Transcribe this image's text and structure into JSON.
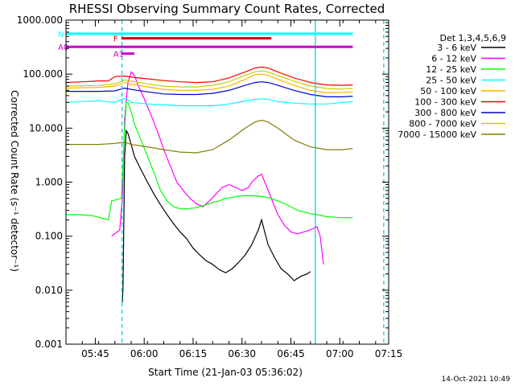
{
  "chart_data": {
    "type": "line",
    "title": "RHESSI Observing Summary Count Rates, Corrected",
    "xlabel": "Start Time (21-Jan-03 05:36:02)",
    "ylabel": "Corrected Count Rate (s⁻¹ detector⁻¹)",
    "yscale": "log",
    "ylim": [
      0.001,
      1000
    ],
    "xlim_minutes": [
      0,
      99
    ],
    "x_ticks": [
      {
        "min": 9,
        "label": "05:45"
      },
      {
        "min": 24,
        "label": "06:00"
      },
      {
        "min": 39,
        "label": "06:15"
      },
      {
        "min": 54,
        "label": "06:30"
      },
      {
        "min": 69,
        "label": "06:45"
      },
      {
        "min": 84,
        "label": "07:00"
      },
      {
        "min": 99,
        "label": "07:15"
      }
    ],
    "y_tick_labels": [
      "0.001",
      "0.010",
      "0.100",
      "1.000",
      "10.000",
      "100.000",
      "1000.000"
    ],
    "legend_title": "Det 1,3,4,5,6,9",
    "timestamp": "14-Oct-2021 10:49",
    "series": [
      {
        "name": "3 - 6 keV",
        "color": "#000000",
        "points": [
          [
            17.3,
            0.006
          ],
          [
            17.5,
            0.012
          ],
          [
            18.0,
            3
          ],
          [
            18.5,
            9
          ],
          [
            19.0,
            8
          ],
          [
            20,
            5
          ],
          [
            21,
            3
          ],
          [
            23,
            1.7
          ],
          [
            25,
            1.0
          ],
          [
            27,
            0.6
          ],
          [
            29,
            0.38
          ],
          [
            31,
            0.25
          ],
          [
            33,
            0.17
          ],
          [
            35,
            0.12
          ],
          [
            37,
            0.09
          ],
          [
            39,
            0.06
          ],
          [
            41,
            0.045
          ],
          [
            43,
            0.035
          ],
          [
            45,
            0.03
          ],
          [
            47,
            0.024
          ],
          [
            49,
            0.021
          ],
          [
            51,
            0.025
          ],
          [
            53,
            0.033
          ],
          [
            55,
            0.045
          ],
          [
            57,
            0.07
          ],
          [
            59,
            0.13
          ],
          [
            60,
            0.2
          ],
          [
            62,
            0.07
          ],
          [
            64,
            0.04
          ],
          [
            66,
            0.025
          ],
          [
            68,
            0.02
          ],
          [
            70,
            0.015
          ],
          [
            72,
            0.018
          ],
          [
            74,
            0.02
          ],
          [
            75,
            0.022
          ]
        ]
      },
      {
        "name": "6 - 12 keV",
        "color": "#ff00ff",
        "points": [
          [
            14,
            0.1
          ],
          [
            16.5,
            0.13
          ],
          [
            17.3,
            0.5
          ],
          [
            18,
            15
          ],
          [
            19,
            70
          ],
          [
            20,
            110
          ],
          [
            21,
            95
          ],
          [
            22,
            65
          ],
          [
            24,
            35
          ],
          [
            26,
            18
          ],
          [
            28,
            9
          ],
          [
            30,
            4
          ],
          [
            32,
            2
          ],
          [
            34,
            1.0
          ],
          [
            36,
            0.7
          ],
          [
            38,
            0.5
          ],
          [
            40,
            0.4
          ],
          [
            42,
            0.35
          ],
          [
            44,
            0.45
          ],
          [
            46,
            0.6
          ],
          [
            48,
            0.8
          ],
          [
            50,
            0.9
          ],
          [
            52,
            0.8
          ],
          [
            54,
            0.7
          ],
          [
            56,
            0.8
          ],
          [
            57,
            1.0
          ],
          [
            59,
            1.3
          ],
          [
            60,
            1.4
          ],
          [
            61,
            1.0
          ],
          [
            63,
            0.5
          ],
          [
            65,
            0.25
          ],
          [
            67,
            0.16
          ],
          [
            69,
            0.12
          ],
          [
            71,
            0.11
          ],
          [
            73,
            0.12
          ],
          [
            75,
            0.13
          ],
          [
            77,
            0.15
          ],
          [
            78,
            0.1
          ],
          [
            79,
            0.03
          ]
        ]
      },
      {
        "name": "12 - 25 keV",
        "color": "#00ff00",
        "points": [
          [
            0,
            0.25
          ],
          [
            4,
            0.25
          ],
          [
            8,
            0.24
          ],
          [
            13,
            0.2
          ],
          [
            14,
            0.45
          ],
          [
            17,
            0.5
          ],
          [
            17.5,
            2
          ],
          [
            18,
            10
          ],
          [
            18.5,
            30
          ],
          [
            19,
            30
          ],
          [
            20,
            20
          ],
          [
            21,
            12
          ],
          [
            23,
            6
          ],
          [
            25,
            3
          ],
          [
            27,
            1.5
          ],
          [
            29,
            0.7
          ],
          [
            31,
            0.45
          ],
          [
            33,
            0.35
          ],
          [
            35,
            0.32
          ],
          [
            37,
            0.32
          ],
          [
            39,
            0.33
          ],
          [
            41,
            0.35
          ],
          [
            43,
            0.38
          ],
          [
            45,
            0.42
          ],
          [
            47,
            0.45
          ],
          [
            49,
            0.5
          ],
          [
            51,
            0.52
          ],
          [
            53,
            0.55
          ],
          [
            55,
            0.56
          ],
          [
            57,
            0.56
          ],
          [
            59,
            0.55
          ],
          [
            61,
            0.53
          ],
          [
            63,
            0.5
          ],
          [
            65,
            0.45
          ],
          [
            67,
            0.4
          ],
          [
            69,
            0.35
          ],
          [
            71,
            0.3
          ],
          [
            73,
            0.28
          ],
          [
            75,
            0.26
          ],
          [
            77,
            0.25
          ],
          [
            80,
            0.23
          ],
          [
            84,
            0.22
          ],
          [
            88,
            0.22
          ]
        ]
      },
      {
        "name": "25 - 50 keV",
        "color": "#00ffff",
        "points": [
          [
            0,
            30
          ],
          [
            5,
            31
          ],
          [
            10,
            32
          ],
          [
            15,
            30
          ],
          [
            17.5,
            35
          ],
          [
            18.5,
            35
          ],
          [
            20,
            30
          ],
          [
            25,
            28
          ],
          [
            30,
            27
          ],
          [
            35,
            26
          ],
          [
            40,
            26
          ],
          [
            45,
            26
          ],
          [
            50,
            28
          ],
          [
            55,
            32
          ],
          [
            58,
            34
          ],
          [
            60,
            35
          ],
          [
            62,
            34
          ],
          [
            65,
            31
          ],
          [
            70,
            29
          ],
          [
            75,
            28
          ],
          [
            80,
            28
          ],
          [
            85,
            30
          ],
          [
            88,
            31
          ]
        ]
      },
      {
        "name": "50 - 100 keV",
        "color": "#ffb000",
        "points": [
          [
            0,
            55
          ],
          [
            5,
            56
          ],
          [
            10,
            57
          ],
          [
            15,
            60
          ],
          [
            18,
            70
          ],
          [
            20,
            65
          ],
          [
            25,
            58
          ],
          [
            30,
            52
          ],
          [
            35,
            50
          ],
          [
            40,
            50
          ],
          [
            45,
            52
          ],
          [
            50,
            60
          ],
          [
            55,
            80
          ],
          [
            58,
            98
          ],
          [
            60,
            100
          ],
          [
            62,
            95
          ],
          [
            65,
            80
          ],
          [
            70,
            62
          ],
          [
            75,
            50
          ],
          [
            80,
            45
          ],
          [
            85,
            46
          ],
          [
            88,
            47
          ]
        ]
      },
      {
        "name": "100 - 300 keV",
        "color": "#ff0000",
        "points": [
          [
            0,
            70
          ],
          [
            5,
            72
          ],
          [
            10,
            75
          ],
          [
            13,
            75
          ],
          [
            15,
            90
          ],
          [
            18,
            92
          ],
          [
            20,
            88
          ],
          [
            25,
            82
          ],
          [
            30,
            76
          ],
          [
            35,
            72
          ],
          [
            40,
            70
          ],
          [
            45,
            72
          ],
          [
            50,
            85
          ],
          [
            55,
            110
          ],
          [
            58,
            130
          ],
          [
            60,
            135
          ],
          [
            62,
            130
          ],
          [
            65,
            110
          ],
          [
            70,
            85
          ],
          [
            75,
            70
          ],
          [
            80,
            63
          ],
          [
            85,
            62
          ],
          [
            88,
            63
          ]
        ]
      },
      {
        "name": "300 - 800 keV",
        "color": "#0000cc",
        "points": [
          [
            0,
            48
          ],
          [
            5,
            48
          ],
          [
            10,
            48
          ],
          [
            15,
            49
          ],
          [
            18,
            55
          ],
          [
            20,
            52
          ],
          [
            25,
            47
          ],
          [
            30,
            43
          ],
          [
            35,
            42
          ],
          [
            40,
            42
          ],
          [
            45,
            44
          ],
          [
            50,
            50
          ],
          [
            55,
            62
          ],
          [
            58,
            70
          ],
          [
            60,
            72
          ],
          [
            62,
            70
          ],
          [
            65,
            62
          ],
          [
            70,
            50
          ],
          [
            75,
            42
          ],
          [
            80,
            38
          ],
          [
            85,
            38
          ],
          [
            88,
            39
          ]
        ]
      },
      {
        "name": "800 - 7000 keV",
        "color": "#cccc00",
        "points": [
          [
            0,
            60
          ],
          [
            5,
            61
          ],
          [
            10,
            62
          ],
          [
            15,
            66
          ],
          [
            18,
            78
          ],
          [
            20,
            74
          ],
          [
            25,
            66
          ],
          [
            30,
            60
          ],
          [
            35,
            58
          ],
          [
            40,
            58
          ],
          [
            45,
            62
          ],
          [
            50,
            72
          ],
          [
            55,
            95
          ],
          [
            58,
            110
          ],
          [
            60,
            115
          ],
          [
            62,
            110
          ],
          [
            65,
            94
          ],
          [
            70,
            74
          ],
          [
            75,
            60
          ],
          [
            80,
            54
          ],
          [
            85,
            53
          ],
          [
            88,
            54
          ]
        ]
      },
      {
        "name": "7000 - 15000 keV",
        "color": "#808000",
        "points": [
          [
            0,
            5
          ],
          [
            5,
            5
          ],
          [
            10,
            5
          ],
          [
            15,
            5.2
          ],
          [
            18,
            5.5
          ],
          [
            20,
            5
          ],
          [
            25,
            4.5
          ],
          [
            30,
            4
          ],
          [
            35,
            3.6
          ],
          [
            40,
            3.5
          ],
          [
            45,
            4
          ],
          [
            50,
            6
          ],
          [
            55,
            10
          ],
          [
            58,
            13
          ],
          [
            60,
            14
          ],
          [
            62,
            13
          ],
          [
            65,
            10
          ],
          [
            70,
            6
          ],
          [
            75,
            4.5
          ],
          [
            80,
            4
          ],
          [
            85,
            4
          ],
          [
            88,
            4.2
          ]
        ]
      }
    ],
    "annotations": [
      {
        "label": "N",
        "color": "#00ffff",
        "level": 560,
        "start": 0,
        "end": 88
      },
      {
        "label": "F",
        "color": "#cc0000",
        "level": 460,
        "start": 17,
        "end": 63
      },
      {
        "label": "A1",
        "color": "#cc00cc",
        "level": 240,
        "start": 17,
        "end": 21
      },
      {
        "label": "A0",
        "color": "#cc00cc",
        "level": 320,
        "start": 0,
        "end": 88
      }
    ]
  }
}
